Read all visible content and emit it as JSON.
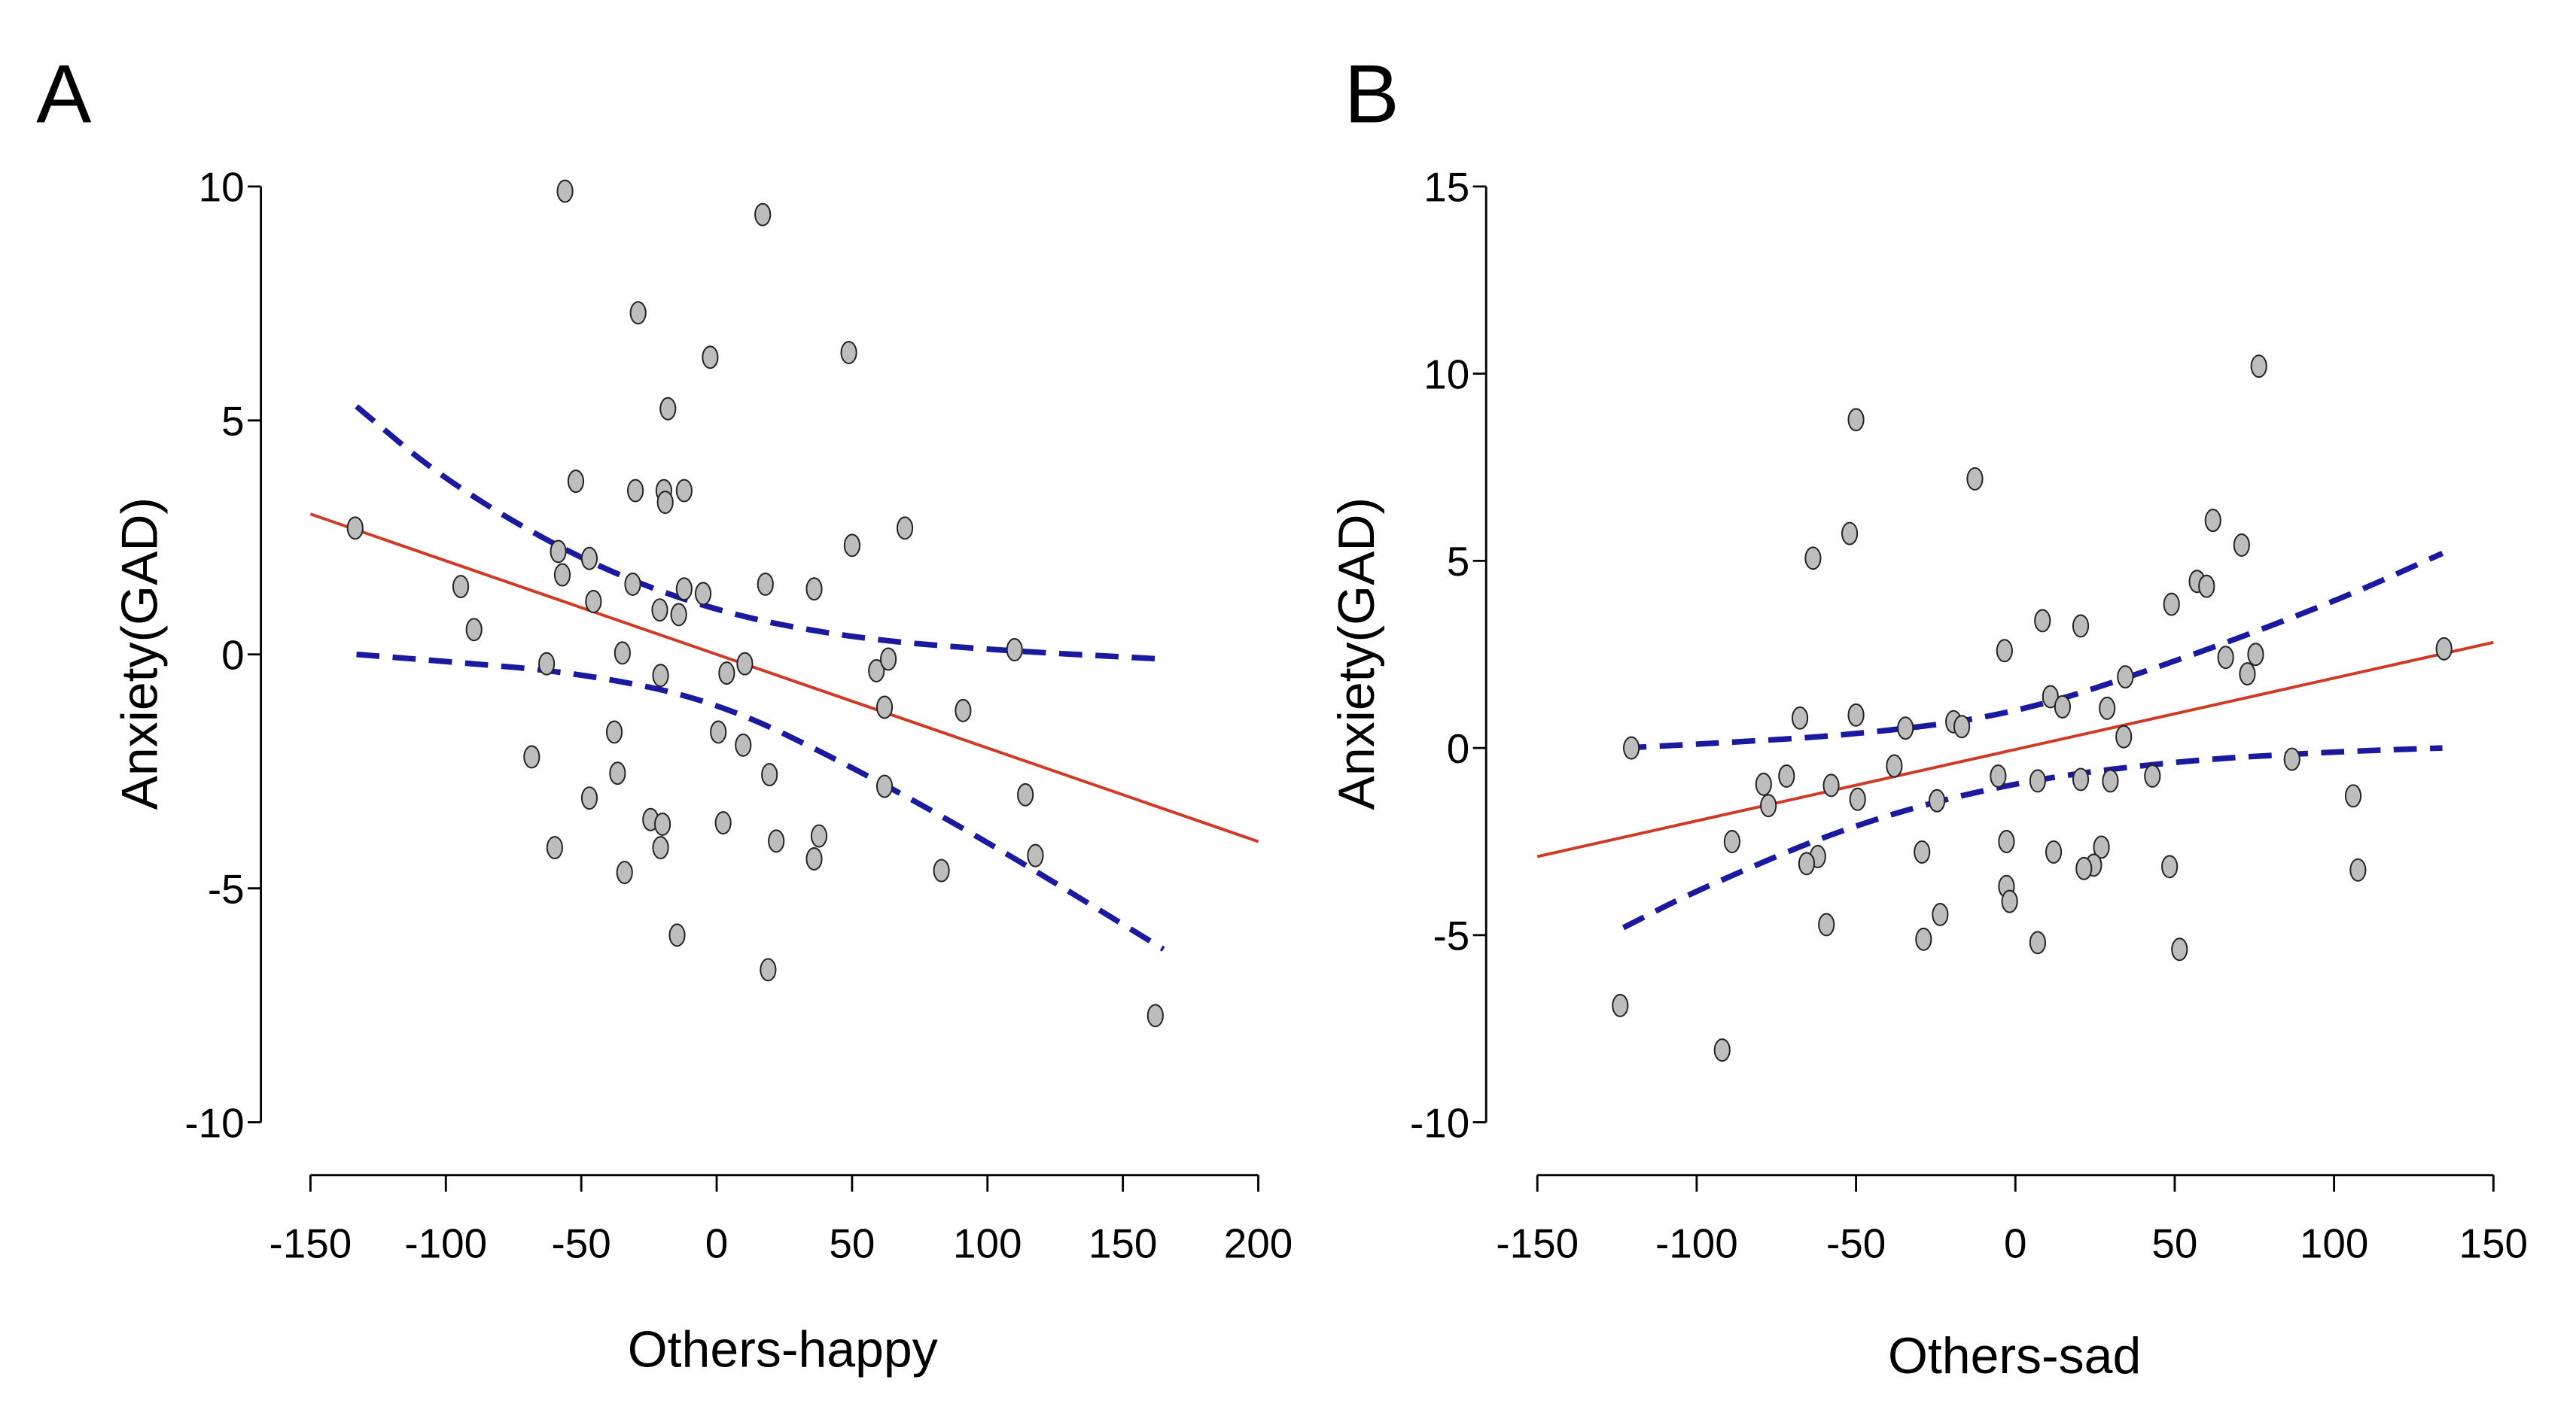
{
  "chart_data": [
    {
      "panel": "A",
      "type": "scatter",
      "xlabel": "Others-happy",
      "ylabel": "Anxiety(GAD)",
      "xlim": [
        -150,
        200
      ],
      "ylim": [
        -10,
        10
      ],
      "xticks": [
        -150,
        -100,
        -50,
        0,
        50,
        100,
        150,
        200
      ],
      "yticks": [
        10,
        5,
        0,
        -5,
        -10
      ],
      "grid": false,
      "points": [
        [
          -56,
          9.9
        ],
        [
          17,
          9.4
        ],
        [
          -29,
          7.3
        ],
        [
          -2.4,
          6.35
        ],
        [
          48.8,
          6.45
        ],
        [
          -18,
          5.25
        ],
        [
          -52,
          3.7
        ],
        [
          -30,
          3.5
        ],
        [
          -19.5,
          3.5
        ],
        [
          -12,
          3.5
        ],
        [
          -19,
          3.25
        ],
        [
          50,
          2.33
        ],
        [
          69.5,
          2.7
        ],
        [
          -133.5,
          2.7
        ],
        [
          -58.5,
          2.2
        ],
        [
          -47,
          2.05
        ],
        [
          -57,
          1.7
        ],
        [
          -94.5,
          1.45
        ],
        [
          -31,
          1.5
        ],
        [
          -12,
          1.4
        ],
        [
          -45.5,
          1.13
        ],
        [
          -21,
          0.95
        ],
        [
          -14,
          0.85
        ],
        [
          -5,
          1.3
        ],
        [
          18,
          1.5
        ],
        [
          36,
          1.4
        ],
        [
          -89.6,
          0.53
        ],
        [
          110,
          0.1
        ],
        [
          -34.8,
          0.03
        ],
        [
          -62.8,
          -0.2
        ],
        [
          10.4,
          -0.2
        ],
        [
          3.7,
          -0.4
        ],
        [
          -20.7,
          -0.45
        ],
        [
          59,
          -0.35
        ],
        [
          63.4,
          -0.1
        ],
        [
          62,
          -1.13
        ],
        [
          91,
          -1.2
        ],
        [
          0.6,
          -1.66
        ],
        [
          -37.8,
          -1.66
        ],
        [
          9.8,
          -1.94
        ],
        [
          -68.3,
          -2.19
        ],
        [
          19.5,
          -2.57
        ],
        [
          -36.6,
          -2.54
        ],
        [
          62,
          -2.82
        ],
        [
          -47,
          -3.07
        ],
        [
          114,
          -3.0
        ],
        [
          -24.4,
          -3.53
        ],
        [
          2.4,
          -3.6
        ],
        [
          -20,
          -3.63
        ],
        [
          37.8,
          -3.88
        ],
        [
          22,
          -3.99
        ],
        [
          -59.8,
          -4.13
        ],
        [
          -20.7,
          -4.13
        ],
        [
          36,
          -4.37
        ],
        [
          117.7,
          -4.3
        ],
        [
          -34,
          -4.66
        ],
        [
          83,
          -4.62
        ],
        [
          -14.6,
          -6.0
        ],
        [
          19,
          -6.74
        ],
        [
          162,
          -7.72
        ]
      ],
      "regression": [
        [
          -150,
          3.0
        ],
        [
          200,
          -4.0
        ]
      ],
      "ci_upper": [
        [
          -133,
          5.3
        ],
        [
          -100,
          3.7
        ],
        [
          -50,
          2.0
        ],
        [
          0,
          0.9
        ],
        [
          50,
          0.35
        ],
        [
          100,
          0.1
        ],
        [
          165,
          -0.1
        ]
      ],
      "ci_lower": [
        [
          -133,
          0.0
        ],
        [
          -100,
          -0.15
        ],
        [
          -50,
          -0.4
        ],
        [
          0,
          -1.0
        ],
        [
          50,
          -2.4
        ],
        [
          100,
          -4.0
        ],
        [
          165,
          -6.3
        ]
      ],
      "colors": {
        "points": "#bdbdbd",
        "regression": "#d03a25",
        "ci": "#1a1aa0"
      }
    },
    {
      "panel": "B",
      "type": "scatter",
      "xlabel": "Others-sad",
      "ylabel": "Anxiety(GAD)",
      "xlim": [
        -150,
        150
      ],
      "ylim": [
        -10,
        15
      ],
      "xticks": [
        -150,
        -100,
        -50,
        0,
        50,
        100,
        150
      ],
      "yticks": [
        15,
        10,
        5,
        0,
        -5,
        -10
      ],
      "grid": false,
      "points": [
        [
          76.4,
          10.2
        ],
        [
          -50,
          8.77
        ],
        [
          -12.7,
          7.19
        ],
        [
          62,
          6.08
        ],
        [
          -52,
          5.73
        ],
        [
          71,
          5.42
        ],
        [
          -63.5,
          5.07
        ],
        [
          57,
          4.45
        ],
        [
          60,
          4.32
        ],
        [
          49,
          3.84
        ],
        [
          8.5,
          3.4
        ],
        [
          20.5,
          3.26
        ],
        [
          -3.4,
          2.6
        ],
        [
          134.5,
          2.65
        ],
        [
          66,
          2.42
        ],
        [
          75.4,
          2.5
        ],
        [
          72.8,
          1.98
        ],
        [
          34.5,
          1.9
        ],
        [
          11,
          1.37
        ],
        [
          14.8,
          1.1
        ],
        [
          28.8,
          1.06
        ],
        [
          -67.6,
          0.8
        ],
        [
          -50,
          0.88
        ],
        [
          -34.5,
          0.53
        ],
        [
          -19.4,
          0.7
        ],
        [
          -16.8,
          0.57
        ],
        [
          34,
          0.3
        ],
        [
          -120.5,
          0.0
        ],
        [
          -38,
          -0.48
        ],
        [
          86.8,
          -0.3
        ],
        [
          -5.4,
          -0.75
        ],
        [
          -71.8,
          -0.75
        ],
        [
          -79,
          -0.97
        ],
        [
          43,
          -0.75
        ],
        [
          7,
          -0.88
        ],
        [
          29.8,
          -0.88
        ],
        [
          20.5,
          -0.84
        ],
        [
          -57.8,
          -1.0
        ],
        [
          -77.5,
          -1.54
        ],
        [
          -49.5,
          -1.37
        ],
        [
          -24.6,
          -1.41
        ],
        [
          106,
          -1.28
        ],
        [
          -88.9,
          -2.5
        ],
        [
          -2.8,
          -2.5
        ],
        [
          12,
          -2.78
        ],
        [
          -62,
          -2.9
        ],
        [
          27,
          -2.65
        ],
        [
          -65.5,
          -3.09
        ],
        [
          -29.3,
          -2.78
        ],
        [
          24.6,
          -3.13
        ],
        [
          21.5,
          -3.22
        ],
        [
          48.4,
          -3.17
        ],
        [
          107.5,
          -3.26
        ],
        [
          -2.8,
          -3.7
        ],
        [
          -1.8,
          -4.1
        ],
        [
          -23.6,
          -4.45
        ],
        [
          -59.3,
          -4.72
        ],
        [
          -28.8,
          -5.11
        ],
        [
          7,
          -5.2
        ],
        [
          51.5,
          -5.38
        ],
        [
          -124,
          -6.88
        ],
        [
          -92,
          -8.07
        ]
      ],
      "regression": [
        [
          -150,
          -2.9
        ],
        [
          150,
          2.82
        ]
      ],
      "ci_upper": [
        [
          -123,
          0.0
        ],
        [
          -100,
          0.1
        ],
        [
          -50,
          0.35
        ],
        [
          0,
          0.9
        ],
        [
          50,
          2.3
        ],
        [
          100,
          3.9
        ],
        [
          134,
          5.2
        ]
      ],
      "ci_lower": [
        [
          -123,
          -4.8
        ],
        [
          -100,
          -3.8
        ],
        [
          -50,
          -2.0
        ],
        [
          0,
          -0.9
        ],
        [
          50,
          -0.35
        ],
        [
          100,
          -0.1
        ],
        [
          134,
          0.0
        ]
      ],
      "colors": {
        "points": "#bdbdbd",
        "regression": "#d03a25",
        "ci": "#1a1aa0"
      }
    }
  ]
}
